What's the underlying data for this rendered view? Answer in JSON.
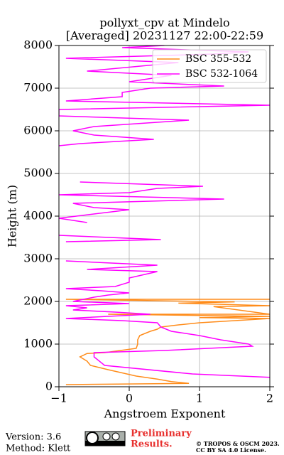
{
  "chart_data": {
    "type": "line",
    "title": "pollyxt_cpv at Mindelo",
    "subtitle": "[Averaged] 20231127 22:00-22:59",
    "x_label": "Angstroem Exponent",
    "y_label": "Height (m)",
    "xlim": [
      -1,
      2
    ],
    "xticks": [
      {
        "value": -1,
        "label": "−1"
      },
      0,
      1,
      2
    ],
    "ylim": [
      0,
      8000
    ],
    "yticks": [
      0,
      1000,
      2000,
      3000,
      4000,
      5000,
      6000,
      7000,
      8000
    ],
    "grid": true,
    "legend": "upper right",
    "series": [
      {
        "name": "BSC 355-532",
        "color": "#ff8c1a",
        "x": [
          -0.9,
          0.85,
          0.6,
          0.4,
          0.1,
          -0.3,
          -0.55,
          -0.6,
          -0.7,
          -0.6,
          -0.35,
          0.1,
          0.12,
          0.12,
          0.15,
          0.3,
          0.4,
          0.45,
          0.7,
          1.0,
          1.5,
          2.0,
          1.0,
          2.0,
          -0.3,
          2.0,
          1.2,
          2.0,
          0.7,
          1.5,
          -0.9,
          2.0
        ],
        "y": [
          50,
          80,
          120,
          180,
          250,
          400,
          500,
          600,
          700,
          780,
          800,
          900,
          1000,
          1100,
          1200,
          1300,
          1350,
          1400,
          1450,
          1500,
          1550,
          1600,
          1620,
          1650,
          1700,
          1700,
          1880,
          1900,
          1960,
          1990,
          2050,
          2050
        ]
      },
      {
        "name": "BSC 532-1064",
        "color": "#ff00ff",
        "x": [
          2.0,
          0.9,
          -0.35,
          -0.5,
          -0.5,
          0.5,
          1.75,
          1.7,
          1.3,
          1.0,
          0.6,
          0.45,
          0.4,
          -0.1,
          -0.9,
          0.3,
          -0.2,
          -0.8,
          -0.6,
          -0.9,
          0.0,
          -0.8,
          -0.5,
          -0.3,
          0.0,
          -0.4,
          -0.9,
          -0.2,
          0.0,
          0.0,
          0.4,
          -0.6,
          0.4,
          -0.9,
          null,
          -0.9,
          0.45,
          -1.0,
          null,
          -0.6,
          -1.0,
          0.0,
          -0.5,
          -0.8,
          1.35,
          -1.0,
          0.0,
          0.4,
          1.05,
          -0.7,
          null,
          -1.0,
          -0.7,
          0.35,
          -0.5,
          -0.8,
          -0.5,
          0.85,
          -1.0,
          -1.0,
          2.0,
          -0.9,
          -0.1,
          -0.1,
          0.3,
          1.35,
          0.0,
          0.6,
          -0.6,
          0.7,
          -0.9,
          1.2,
          1.7,
          -0.1,
          0.5
        ],
        "y": [
          220,
          300,
          500,
          700,
          800,
          850,
          950,
          1000,
          1100,
          1200,
          1300,
          1400,
          1500,
          1550,
          1600,
          1700,
          1750,
          1800,
          1850,
          1900,
          1950,
          2000,
          2100,
          2150,
          2200,
          2250,
          2300,
          2350,
          2450,
          2550,
          2700,
          2750,
          2850,
          2950,
          null,
          3400,
          3450,
          3550,
          null,
          3850,
          3950,
          4150,
          4200,
          4300,
          4400,
          4500,
          4550,
          4650,
          4700,
          4800,
          null,
          5650,
          5700,
          5800,
          5900,
          6000,
          6100,
          6250,
          6350,
          6500,
          6600,
          6700,
          6800,
          6900,
          7000,
          7050,
          7150,
          7300,
          7400,
          7600,
          7700,
          7800,
          7850,
          7950,
          8000
        ]
      }
    ]
  },
  "footer": {
    "version": "Version: 3.6",
    "method": "Method: Klett",
    "notice": [
      "Preliminary",
      "Results."
    ],
    "copyright": [
      "© TROPOS & OSCM 2023.",
      "CC BY SA 4.0 License."
    ]
  }
}
